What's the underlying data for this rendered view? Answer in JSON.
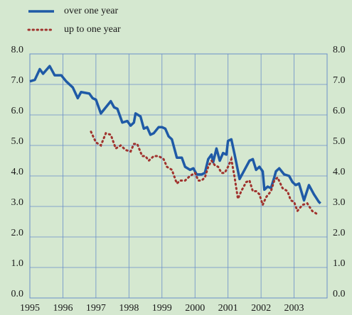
{
  "chart_data": {
    "type": "line",
    "legend": "top-left",
    "grid": true,
    "xlim": [
      1995,
      2004
    ],
    "xticks": [
      1995,
      1996,
      1997,
      1998,
      1999,
      2000,
      2001,
      2002,
      2003
    ],
    "ylim": [
      0,
      8
    ],
    "yticks": [
      {
        "value": 0,
        "label": "0.0"
      },
      {
        "value": 1,
        "label": "1.0"
      },
      {
        "value": 2,
        "label": "2.0"
      },
      {
        "value": 3,
        "label": "3.0"
      },
      {
        "value": 4,
        "label": "4.0"
      },
      {
        "value": 5,
        "label": "5.0"
      },
      {
        "value": 6,
        "label": "6.0"
      },
      {
        "value": 7,
        "label": "7.0"
      },
      {
        "value": 8,
        "label": "8.0"
      }
    ],
    "y2lim": [
      0,
      8
    ],
    "y2ticks": [
      {
        "value": 0,
        "label": "0.0"
      },
      {
        "value": 1,
        "label": "1.0"
      },
      {
        "value": 2,
        "label": "2.0"
      },
      {
        "value": 3,
        "label": "3.0"
      },
      {
        "value": 4,
        "label": "4.0"
      },
      {
        "value": 5,
        "label": "5.0"
      },
      {
        "value": 6,
        "label": "6.0"
      },
      {
        "value": 7,
        "label": "7.0"
      },
      {
        "value": 8,
        "label": "8.0"
      }
    ],
    "series": [
      {
        "name": "over one year",
        "color": "#1f5aa6",
        "style": "solid",
        "x": [
          1995.0,
          1995.15,
          1995.3,
          1995.4,
          1995.6,
          1995.75,
          1995.95,
          1996.1,
          1996.3,
          1996.45,
          1996.55,
          1996.8,
          1996.9,
          1997.0,
          1997.15,
          1997.3,
          1997.45,
          1997.55,
          1997.65,
          1997.8,
          1997.95,
          1998.05,
          1998.15,
          1998.2,
          1998.35,
          1998.45,
          1998.55,
          1998.65,
          1998.75,
          1998.9,
          1999.0,
          1999.1,
          1999.2,
          1999.3,
          1999.45,
          1999.6,
          1999.7,
          1999.85,
          1999.95,
          2000.05,
          2000.2,
          2000.3,
          2000.4,
          2000.5,
          2000.55,
          2000.65,
          2000.75,
          2000.85,
          2000.95,
          2001.0,
          2001.1,
          2001.2,
          2001.35,
          2001.5,
          2001.65,
          2001.75,
          2001.85,
          2001.95,
          2002.05,
          2002.1,
          2002.2,
          2002.3,
          2002.4,
          2002.45,
          2002.55,
          2002.7,
          2002.85,
          2002.95,
          2003.05,
          2003.15,
          2003.3,
          2003.45,
          2003.6,
          2003.75,
          2003.8
        ],
        "values": [
          7.1,
          7.15,
          7.5,
          7.35,
          7.6,
          7.3,
          7.3,
          7.1,
          6.9,
          6.55,
          6.75,
          6.7,
          6.55,
          6.5,
          6.05,
          6.25,
          6.45,
          6.25,
          6.2,
          5.75,
          5.8,
          5.65,
          5.75,
          6.05,
          5.95,
          5.55,
          5.6,
          5.35,
          5.4,
          5.6,
          5.6,
          5.55,
          5.3,
          5.2,
          4.6,
          4.6,
          4.3,
          4.2,
          4.25,
          4.05,
          4.05,
          4.1,
          4.55,
          4.7,
          4.45,
          4.9,
          4.5,
          4.75,
          4.7,
          5.15,
          5.2,
          4.7,
          3.9,
          4.2,
          4.5,
          4.55,
          4.2,
          4.3,
          4.15,
          3.55,
          3.65,
          3.6,
          3.95,
          4.15,
          4.25,
          4.05,
          4.0,
          3.8,
          3.7,
          3.75,
          3.2,
          3.7,
          3.4,
          3.15,
          3.1
        ]
      },
      {
        "name": "up to one year",
        "color": "#a0332e",
        "style": "dotted",
        "x": [
          1996.85,
          1997.0,
          1997.15,
          1997.3,
          1997.45,
          1997.6,
          1997.75,
          1997.9,
          1998.05,
          1998.15,
          1998.25,
          1998.4,
          1998.5,
          1998.6,
          1998.75,
          1998.9,
          1999.05,
          1999.15,
          1999.3,
          1999.45,
          1999.55,
          1999.7,
          1999.85,
          2000.0,
          2000.1,
          2000.2,
          2000.3,
          2000.4,
          2000.5,
          2000.6,
          2000.7,
          2000.8,
          2000.9,
          2001.0,
          2001.1,
          2001.2,
          2001.3,
          2001.4,
          2001.55,
          2001.65,
          2001.75,
          2001.85,
          2001.95,
          2002.05,
          2002.15,
          2002.3,
          2002.4,
          2002.5,
          2002.65,
          2002.8,
          2002.9,
          2003.0,
          2003.1,
          2003.25,
          2003.4,
          2003.55,
          2003.7
        ],
        "values": [
          5.45,
          5.1,
          5.0,
          5.4,
          5.35,
          4.9,
          5.0,
          4.85,
          4.8,
          5.05,
          5.05,
          4.65,
          4.65,
          4.5,
          4.65,
          4.65,
          4.55,
          4.3,
          4.2,
          3.75,
          3.85,
          3.85,
          4.0,
          4.1,
          3.85,
          3.85,
          3.95,
          4.3,
          4.5,
          4.35,
          4.3,
          4.1,
          4.1,
          4.3,
          4.55,
          3.95,
          3.25,
          3.5,
          3.8,
          3.85,
          3.5,
          3.5,
          3.4,
          3.05,
          3.3,
          3.5,
          3.85,
          3.95,
          3.6,
          3.5,
          3.2,
          3.15,
          2.85,
          3.05,
          3.1,
          2.85,
          2.75
        ]
      }
    ]
  }
}
